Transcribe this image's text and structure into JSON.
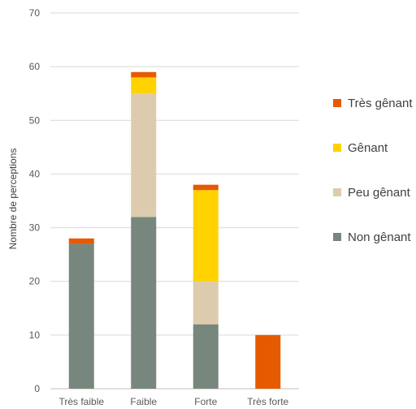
{
  "chart_data": {
    "type": "bar",
    "stacked": true,
    "categories": [
      "Très faible",
      "Faible",
      "Forte",
      "Très forte"
    ],
    "series": [
      {
        "name": "Non gênant",
        "color": "#77877d",
        "values": [
          27,
          32,
          12,
          0
        ]
      },
      {
        "name": "Peu gênant",
        "color": "#dcccad",
        "values": [
          0,
          23,
          8,
          0
        ]
      },
      {
        "name": "Gênant",
        "color": "#ffd200",
        "values": [
          0,
          3,
          17,
          0
        ]
      },
      {
        "name": "Très gênant",
        "color": "#e65a00",
        "values": [
          1,
          1,
          1,
          10
        ]
      }
    ],
    "title": "",
    "xlabel": "",
    "ylabel": "Nombre de perceptions",
    "ylim": [
      0,
      70
    ],
    "yticks": [
      0,
      10,
      20,
      30,
      40,
      50,
      60,
      70
    ],
    "grid": true,
    "legend_position": "right",
    "legend_order": [
      "Très gênant",
      "Gênant",
      "Peu gênant",
      "Non gênant"
    ]
  }
}
